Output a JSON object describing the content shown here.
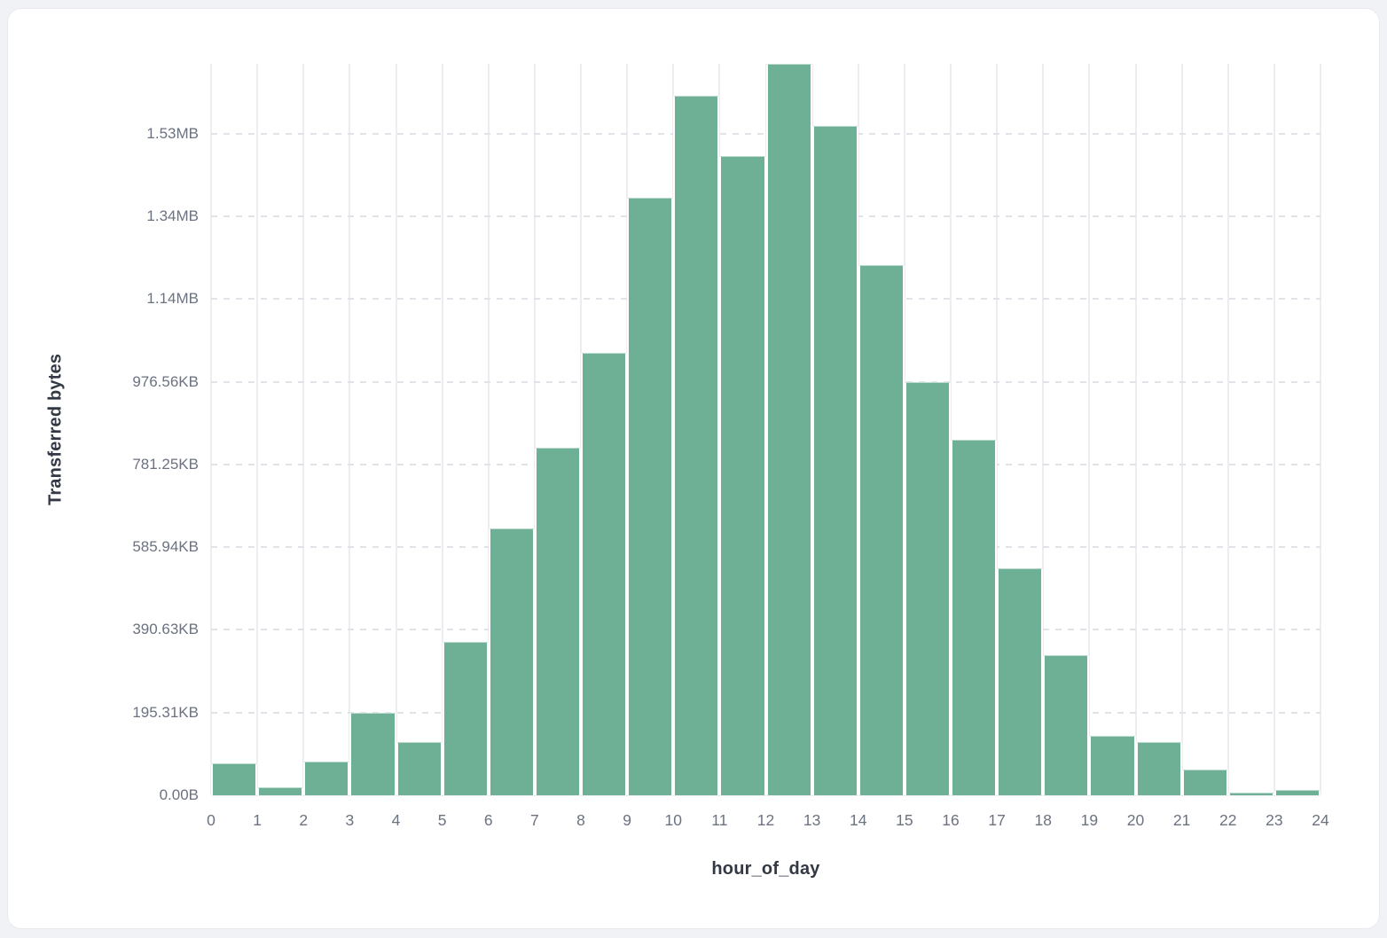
{
  "colors": {
    "page_bg": "#f1f2f5",
    "card_bg": "#ffffff",
    "card_border": "#e9eaee",
    "bar_fill": "#6db095",
    "bar_stroke": "#ffffff",
    "vgrid": "#ececf1",
    "hgrid_dash": "#e2e3e8",
    "tick_text": "#6b7280",
    "axis_title_text": "#323844"
  },
  "chart_data": {
    "type": "bar",
    "title": "",
    "xlabel": "hour_of_day",
    "ylabel": "Transferred bytes",
    "x": [
      0,
      1,
      2,
      3,
      4,
      5,
      6,
      7,
      8,
      9,
      10,
      11,
      12,
      13,
      14,
      15,
      16,
      17,
      18,
      19,
      20,
      21,
      22,
      23
    ],
    "values": [
      77000,
      19000,
      81000,
      199000,
      128000,
      370000,
      645000,
      841000,
      1071000,
      1445000,
      1692000,
      1546000,
      1769000,
      1619000,
      1283000,
      1000000,
      859000,
      550000,
      338000,
      143000,
      128000,
      62000,
      6000,
      13000
    ],
    "values_unit": "bytes",
    "x_ticks": [
      "0",
      "1",
      "2",
      "3",
      "4",
      "5",
      "6",
      "7",
      "8",
      "9",
      "10",
      "11",
      "12",
      "13",
      "14",
      "15",
      "16",
      "17",
      "18",
      "19",
      "20",
      "21",
      "22",
      "23",
      "24"
    ],
    "y_ticks": [
      {
        "label": "0.00B",
        "value": 0
      },
      {
        "label": "195.31KB",
        "value": 200000
      },
      {
        "label": "390.63KB",
        "value": 400000
      },
      {
        "label": "585.94KB",
        "value": 600000
      },
      {
        "label": "781.25KB",
        "value": 800000
      },
      {
        "label": "976.56KB",
        "value": 1000000
      },
      {
        "label": "1.14MB",
        "value": 1200000
      },
      {
        "label": "1.34MB",
        "value": 1400000
      },
      {
        "label": "1.53MB",
        "value": 1600000
      }
    ],
    "xlim": [
      0,
      24
    ],
    "ylim": [
      0,
      1769000
    ],
    "grid": true,
    "legend": "none"
  }
}
